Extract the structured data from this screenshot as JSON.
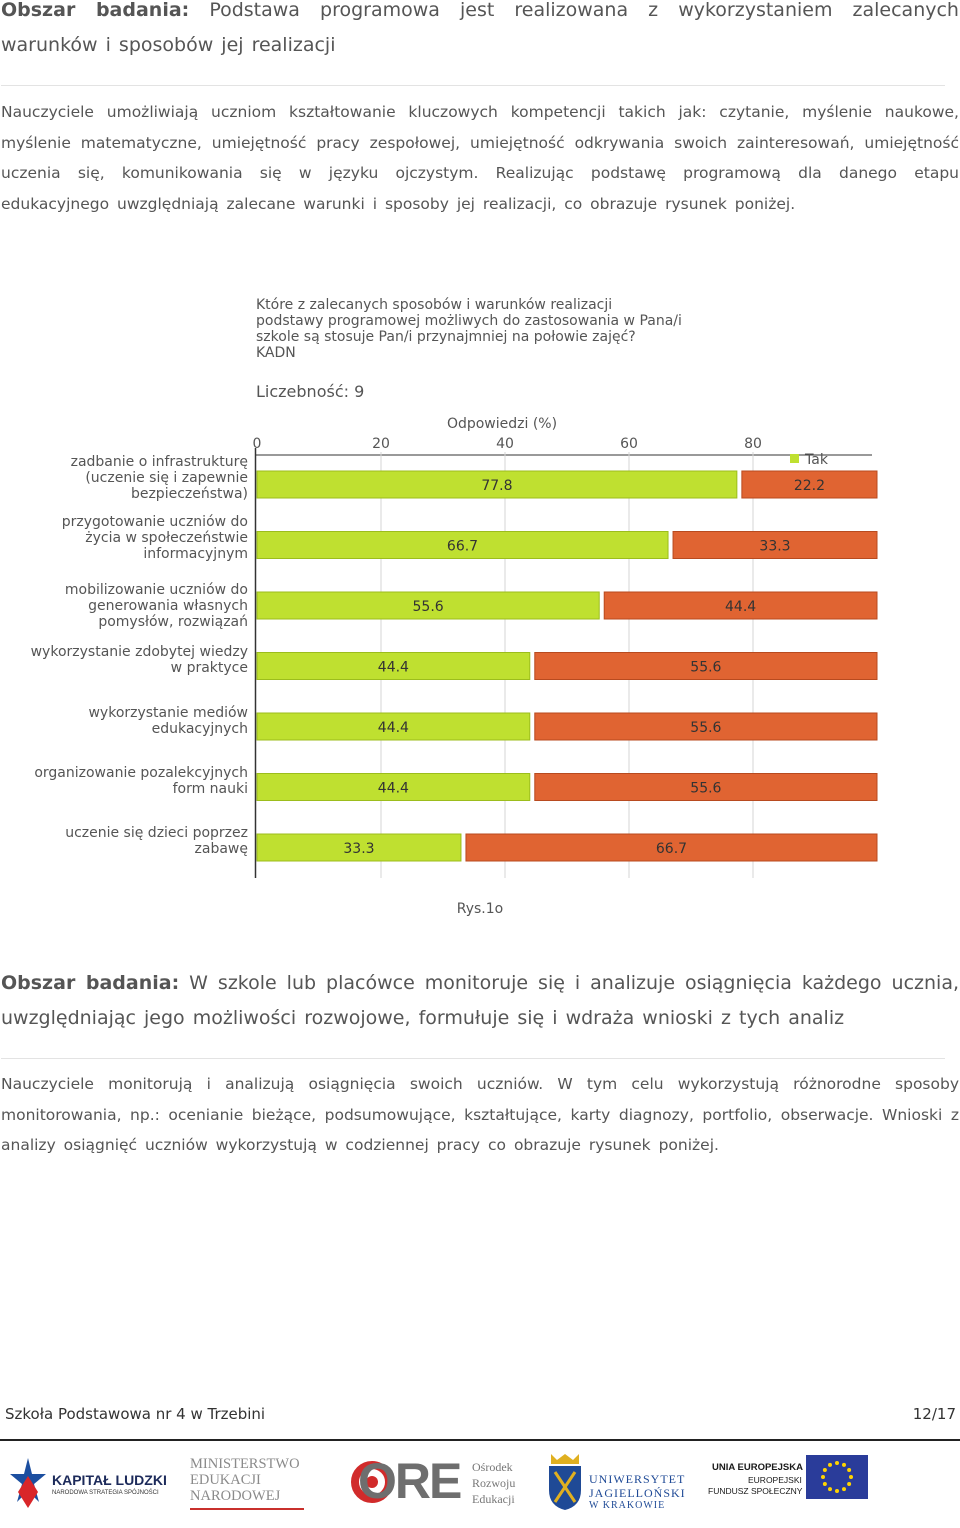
{
  "section1": {
    "label": "Obszar badania:",
    "title": "Podstawa programowa jest realizowana z wykorzystaniem zalecanych warunków i sposobów jej realizacji",
    "paragraph": "Nauczyciele umożliwiają uczniom kształtowanie kluczowych kompetencji takich jak: czytanie, myślenie naukowe, myślenie matematyczne, umiejętność pracy zespołowej, umiejętność odkrywania swoich zainteresowań, umiejętność uczenia się, komunikowania się w języku ojczystym. Realizując podstawę programową dla danego etapu edukacyjnego uwzględniają zalecane warunki i sposoby jej realizacji, co obrazuje rysunek poniżej."
  },
  "chart_data": {
    "type": "bar",
    "title_lines": [
      "Które z zalecanych sposobów i warunków realizacji",
      "podstawy programowej możliwych do zastosowania w Pana/i",
      "szkole są stosuje Pan/i przynajmniej na połowie zajęć?",
      "KADN"
    ],
    "count_label": "Liczebność: 9",
    "xlabel": "Odpowiedzi (%)",
    "xlim": [
      0,
      100
    ],
    "ticks": [
      "0",
      "20",
      "40",
      "60",
      "80"
    ],
    "legend": "Tak",
    "legend_position": "top-right",
    "categories": [
      [
        "zadbanie o infrastrukturę",
        "(uczenie się i zapewnie",
        "bezpieczeństwa)"
      ],
      [
        "przygotowanie uczniów do",
        "życia w społeczeństwie",
        "informacyjnym"
      ],
      [
        "mobilizowanie uczniów do",
        "generowania własnych",
        "pomysłów, rozwiązań"
      ],
      [
        "wykorzystanie zdobytej wiedzy",
        "w praktyce"
      ],
      [
        "wykorzystanie mediów",
        "edukacyjnych"
      ],
      [
        "organizowanie pozalekcyjnych",
        "form nauki"
      ],
      [
        "uczenie się dzieci poprzez",
        "zabawę"
      ]
    ],
    "series": [
      {
        "name": "Tak",
        "values": [
          77.8,
          66.7,
          55.6,
          44.4,
          44.4,
          44.4,
          33.3
        ]
      },
      {
        "values": [
          22.2,
          33.3,
          44.4,
          55.6,
          55.6,
          55.6,
          66.7
        ]
      }
    ],
    "colors": [
      "#bfe030",
      "#e06432"
    ]
  },
  "figure_caption": "Rys.1o",
  "section2": {
    "label": "Obszar badania:",
    "title": "W szkole lub placówce monitoruje się i analizuje osiągnięcia każdego ucznia, uwzględniając jego możliwości rozwojowe, formułuje się i wdraża wnioski z tych analiz",
    "paragraph": "Nauczyciele monitorują i analizują osiągnięcia swoich uczniów. W tym celu wykorzystują różnorodne sposoby monitorowania, np.: ocenianie bieżące, podsumowujące, kształtujące, karty diagnozy, portfolio, obserwacje. Wnioski z analizy osiągnięć uczniów wykorzystują w codziennej pracy co obrazuje rysunek poniżej."
  },
  "footer": {
    "school": "Szkoła Podstawowa nr 4 w Trzebini",
    "page": "12/17"
  },
  "logos": {
    "kapital_ludzki": [
      "KAPITAŁ LUDZKI",
      "NARODOWA STRATEGIA SPÓJNOŚCI"
    ],
    "men": [
      "MINISTERSTWO",
      "EDUKACJI",
      "NARODOWEJ"
    ],
    "ore": [
      "ORE",
      "Ośrodek",
      "Rozwoju",
      "Edukacji"
    ],
    "uj": [
      "UNIWERSYTET",
      "JAGIELLOŃSKI",
      "W KRAKOWIE"
    ],
    "ue": [
      "UNIA EUROPEJSKA",
      "EUROPEJSKI",
      "FUNDUSZ SPOŁECZNY"
    ]
  }
}
